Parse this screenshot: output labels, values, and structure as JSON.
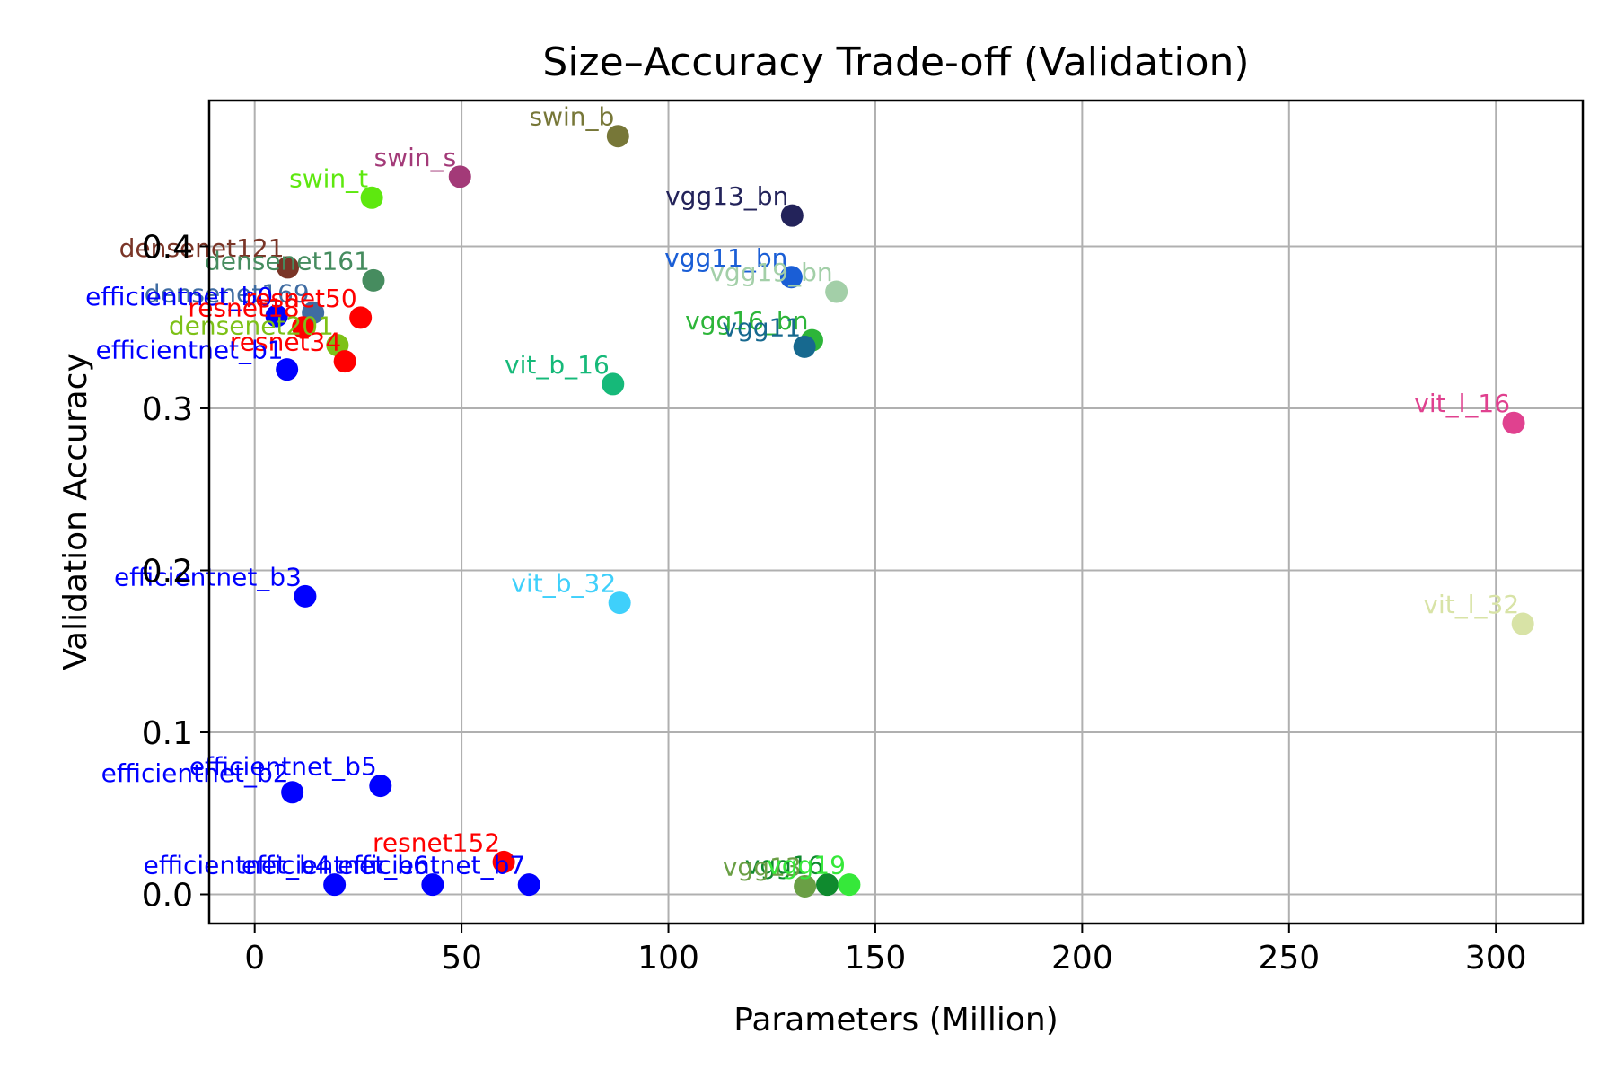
{
  "chart_data": {
    "type": "scatter",
    "title": "Size–Accuracy Trade-off (Validation)",
    "xlabel": "Parameters (Million)",
    "ylabel": "Validation Accuracy",
    "xlim": [
      -11,
      321
    ],
    "ylim": [
      -0.018,
      0.49
    ],
    "xticks": [
      0,
      50,
      100,
      150,
      200,
      250,
      300
    ],
    "yticks": [
      0.0,
      0.1,
      0.2,
      0.3,
      0.4
    ],
    "xtick_labels": [
      "0",
      "50",
      "100",
      "150",
      "200",
      "250",
      "300"
    ],
    "ytick_labels": [
      "0.0",
      "0.1",
      "0.2",
      "0.3",
      "0.4"
    ],
    "grid": true,
    "points": [
      {
        "label": "swin_b",
        "x": 87.8,
        "y": 0.468,
        "color": "#777738"
      },
      {
        "label": "swin_s",
        "x": 49.6,
        "y": 0.443,
        "color": "#a33a78"
      },
      {
        "label": "swin_t",
        "x": 28.3,
        "y": 0.43,
        "color": "#5ee80f"
      },
      {
        "label": "vgg13_bn",
        "x": 129.9,
        "y": 0.419,
        "color": "#23235a"
      },
      {
        "label": "densenet121",
        "x": 8.0,
        "y": 0.387,
        "color": "#7a3527"
      },
      {
        "label": "densenet161",
        "x": 28.7,
        "y": 0.379,
        "color": "#468c5f"
      },
      {
        "label": "vgg11_bn",
        "x": 129.7,
        "y": 0.381,
        "color": "#1a5ed6"
      },
      {
        "label": "vgg19_bn",
        "x": 140.6,
        "y": 0.372,
        "color": "#a3cfa8"
      },
      {
        "label": "densenet169",
        "x": 14.1,
        "y": 0.359,
        "color": "#3f6ca2"
      },
      {
        "label": "efficientnet_b0",
        "x": 5.3,
        "y": 0.357,
        "color": "#0000ff"
      },
      {
        "label": "resnet18",
        "x": 11.7,
        "y": 0.35,
        "color": "#ff0000"
      },
      {
        "label": "resnet50",
        "x": 25.6,
        "y": 0.356,
        "color": "#ff0000"
      },
      {
        "label": "densenet201",
        "x": 20.0,
        "y": 0.339,
        "color": "#7dc117"
      },
      {
        "label": "resnet34",
        "x": 21.8,
        "y": 0.329,
        "color": "#ff0000"
      },
      {
        "label": "efficientnet_b1",
        "x": 7.8,
        "y": 0.324,
        "color": "#0000ff"
      },
      {
        "label": "vgg16_bn",
        "x": 134.7,
        "y": 0.342,
        "color": "#2db539"
      },
      {
        "label": "vgg11",
        "x": 132.9,
        "y": 0.338,
        "color": "#17698f"
      },
      {
        "label": "vit_b_16",
        "x": 86.6,
        "y": 0.315,
        "color": "#16b979"
      },
      {
        "label": "vit_l_16",
        "x": 304.3,
        "y": 0.291,
        "color": "#e0418f"
      },
      {
        "label": "efficientnet_b3",
        "x": 12.2,
        "y": 0.184,
        "color": "#0000ff"
      },
      {
        "label": "vit_b_32",
        "x": 88.2,
        "y": 0.18,
        "color": "#3fd0fb"
      },
      {
        "label": "vit_l_32",
        "x": 306.5,
        "y": 0.167,
        "color": "#d8e3a6"
      },
      {
        "label": "efficientnet_b2",
        "x": 9.1,
        "y": 0.063,
        "color": "#0000ff"
      },
      {
        "label": "efficientnet_b5",
        "x": 30.4,
        "y": 0.067,
        "color": "#0000ff"
      },
      {
        "label": "resnet152",
        "x": 60.2,
        "y": 0.02,
        "color": "#ff0000"
      },
      {
        "label": "efficientnet_b4",
        "x": 19.3,
        "y": 0.006,
        "color": "#0000ff"
      },
      {
        "label": "efficientnet_b6",
        "x": 43.0,
        "y": 0.006,
        "color": "#0000ff"
      },
      {
        "label": "efficientnet_b7",
        "x": 66.3,
        "y": 0.006,
        "color": "#0000ff"
      },
      {
        "label": "vgg16",
        "x": 138.4,
        "y": 0.006,
        "color": "#0f8a2e"
      },
      {
        "label": "vgg13",
        "x": 133.0,
        "y": 0.005,
        "color": "#6a9f45"
      },
      {
        "label": "vgg19",
        "x": 143.7,
        "y": 0.006,
        "color": "#36e83a"
      }
    ]
  }
}
